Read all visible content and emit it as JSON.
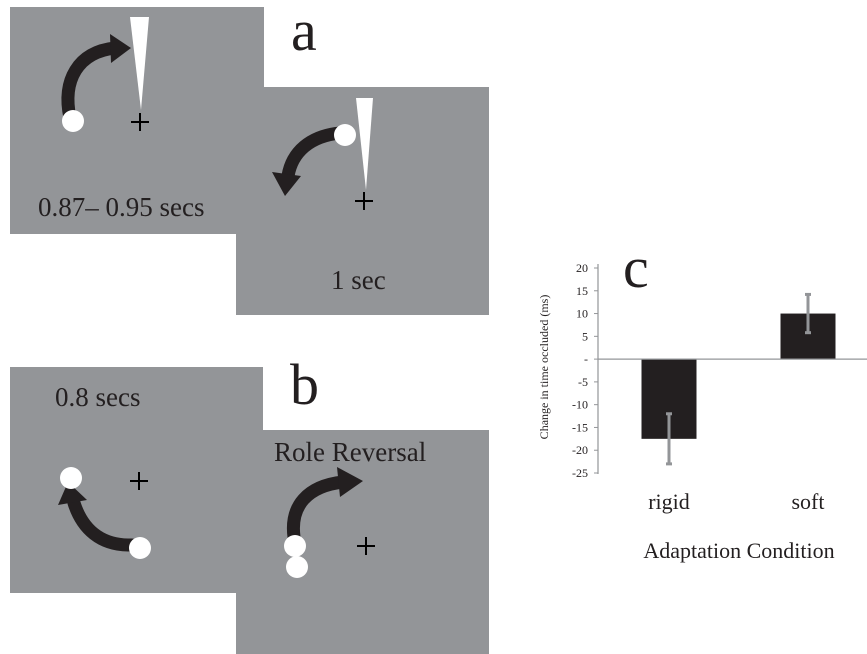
{
  "panel_a": {
    "letter": "a",
    "frame1_label": "0.87– 0.95 secs",
    "frame2_label": "1 sec"
  },
  "panel_b": {
    "letter": "b",
    "frame1_label": "0.8 secs",
    "frame2_label": "Role Reversal"
  },
  "panel_c": {
    "letter": "c"
  },
  "chart_data": {
    "type": "bar",
    "categories": [
      "rigid",
      "soft"
    ],
    "values": [
      -17.5,
      10
    ],
    "errors": [
      5.5,
      4.2
    ],
    "xlabel": "Adaptation Condition",
    "ylabel": "Change in time occluded  (ms)",
    "ylim": [
      -25,
      20
    ],
    "yticks": [
      20,
      15,
      10,
      5,
      0,
      -5,
      -10,
      -15,
      -20,
      -25
    ],
    "ytick_labels": [
      "20",
      "15",
      "10",
      "5",
      "-",
      "-5",
      "-10",
      "-15",
      "-20",
      "-25"
    ],
    "bar_color": "#231f20",
    "error_bar_color": "#939598",
    "grid": false
  }
}
